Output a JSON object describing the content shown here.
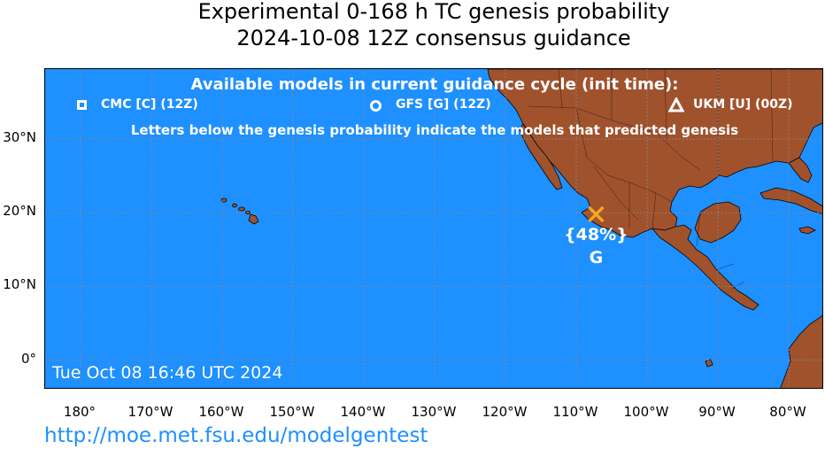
{
  "title_line1": "Experimental 0-168 h TC genesis probability",
  "title_line2": "2024-10-08 12Z consensus guidance",
  "legend": {
    "heading": "Available models in current guidance cycle (init time):",
    "models": [
      {
        "label": "CMC [C] (12Z)",
        "marker": "square-icon"
      },
      {
        "label": "GFS [G] (12Z)",
        "marker": "circle-icon"
      },
      {
        "label": "UKM [U] (00Z)",
        "marker": "triangle-icon"
      }
    ],
    "note": "Letters below the genesis probability indicate the models that predicted genesis"
  },
  "genesis_point": {
    "lon": -107.2,
    "lat": 19.8,
    "probability_label": "{48%}",
    "models_label": "G",
    "marker_color": "#f5a623"
  },
  "timestamp": "Tue Oct 08 16:46 UTC 2024",
  "lat_labels": [
    "30°N",
    "20°N",
    "10°N",
    "0°"
  ],
  "lon_labels": [
    "180°",
    "170°W",
    "160°W",
    "150°W",
    "140°W",
    "130°W",
    "120°W",
    "110°W",
    "100°W",
    "90°W",
    "80°W"
  ],
  "url": "http://moe.met.fsu.edu/modelgentest",
  "colors": {
    "ocean": "#1e90ff",
    "land": "#a0522d",
    "text": "#ffffff"
  }
}
